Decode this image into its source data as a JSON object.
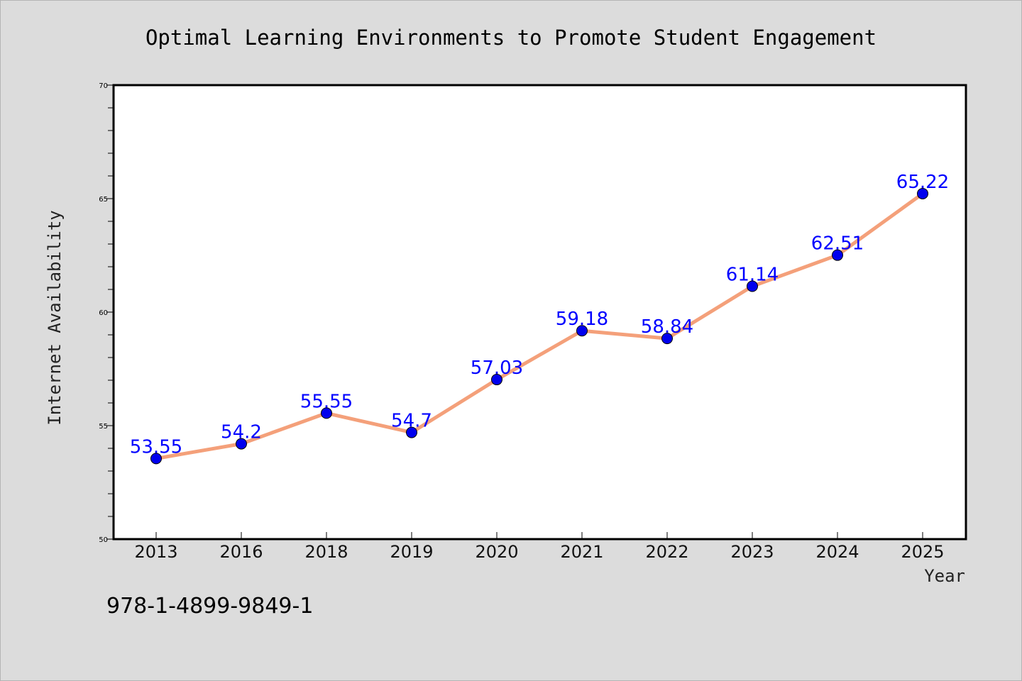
{
  "chart_data": {
    "type": "line",
    "title": "Optimal Learning Environments to Promote Student Engagement",
    "xlabel": "Year",
    "ylabel": "Internet Availability",
    "categories": [
      "2013",
      "2016",
      "2018",
      "2019",
      "2020",
      "2021",
      "2022",
      "2023",
      "2024",
      "2025"
    ],
    "series": [
      {
        "values": [
          53.55,
          54.2,
          55.55,
          54.7,
          57.03,
          59.18,
          58.84,
          61.14,
          62.51,
          65.22
        ],
        "labels": [
          "53.55",
          "54.2",
          "55.55",
          "54.7",
          "57.03",
          "59.18",
          "58.84",
          "61.14",
          "62.51",
          "65.22"
        ]
      }
    ],
    "ylim": [
      50,
      70
    ],
    "yticks": [
      "50",
      "55",
      "60",
      "65",
      "70"
    ],
    "grid": false,
    "line_color": "#f4a07a",
    "marker_color": "#0000ee",
    "label_color": "#0000ff"
  },
  "footer": {
    "isbn": "978-1-4899-9849-1"
  }
}
